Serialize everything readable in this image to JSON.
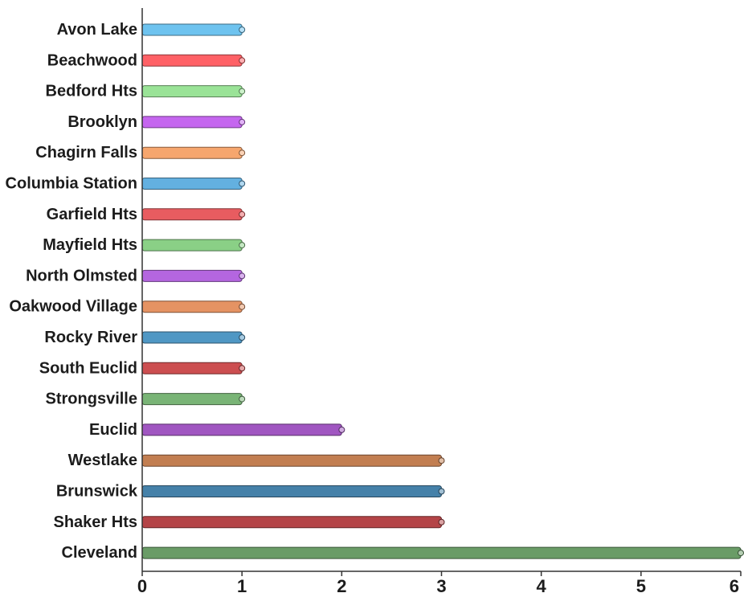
{
  "chart_data": {
    "type": "bar",
    "orientation": "horizontal",
    "title": "",
    "xlabel": "",
    "ylabel": "",
    "xlim": [
      0,
      6
    ],
    "x_ticks": [
      "0",
      "1",
      "2",
      "3",
      "4",
      "5",
      "6"
    ],
    "grid": false,
    "categories": [
      "Avon Lake",
      "Beachwood",
      "Bedford Hts",
      "Brooklyn",
      "Chagirn Falls",
      "Columbia Station",
      "Garfield Hts",
      "Mayfield Hts",
      "North Olmsted",
      "Oakwood Village",
      "Rocky River",
      "South Euclid",
      "Strongsville",
      "Euclid",
      "Westlake",
      "Brunswick",
      "Shaker Hts",
      "Cleveland"
    ],
    "values": [
      1,
      1,
      1,
      1,
      1,
      1,
      1,
      1,
      1,
      1,
      1,
      1,
      1,
      2,
      3,
      3,
      3,
      6
    ],
    "colors": [
      "#6ec3ef",
      "#ff6166",
      "#9ae397",
      "#c566ef",
      "#f6a66e",
      "#63b0e0",
      "#e85c60",
      "#8ad086",
      "#b466df",
      "#e59363",
      "#4f97c4",
      "#cc4e50",
      "#79b476",
      "#a056c1",
      "#c27e51",
      "#4581a9",
      "#b44447",
      "#6a9c67"
    ]
  }
}
